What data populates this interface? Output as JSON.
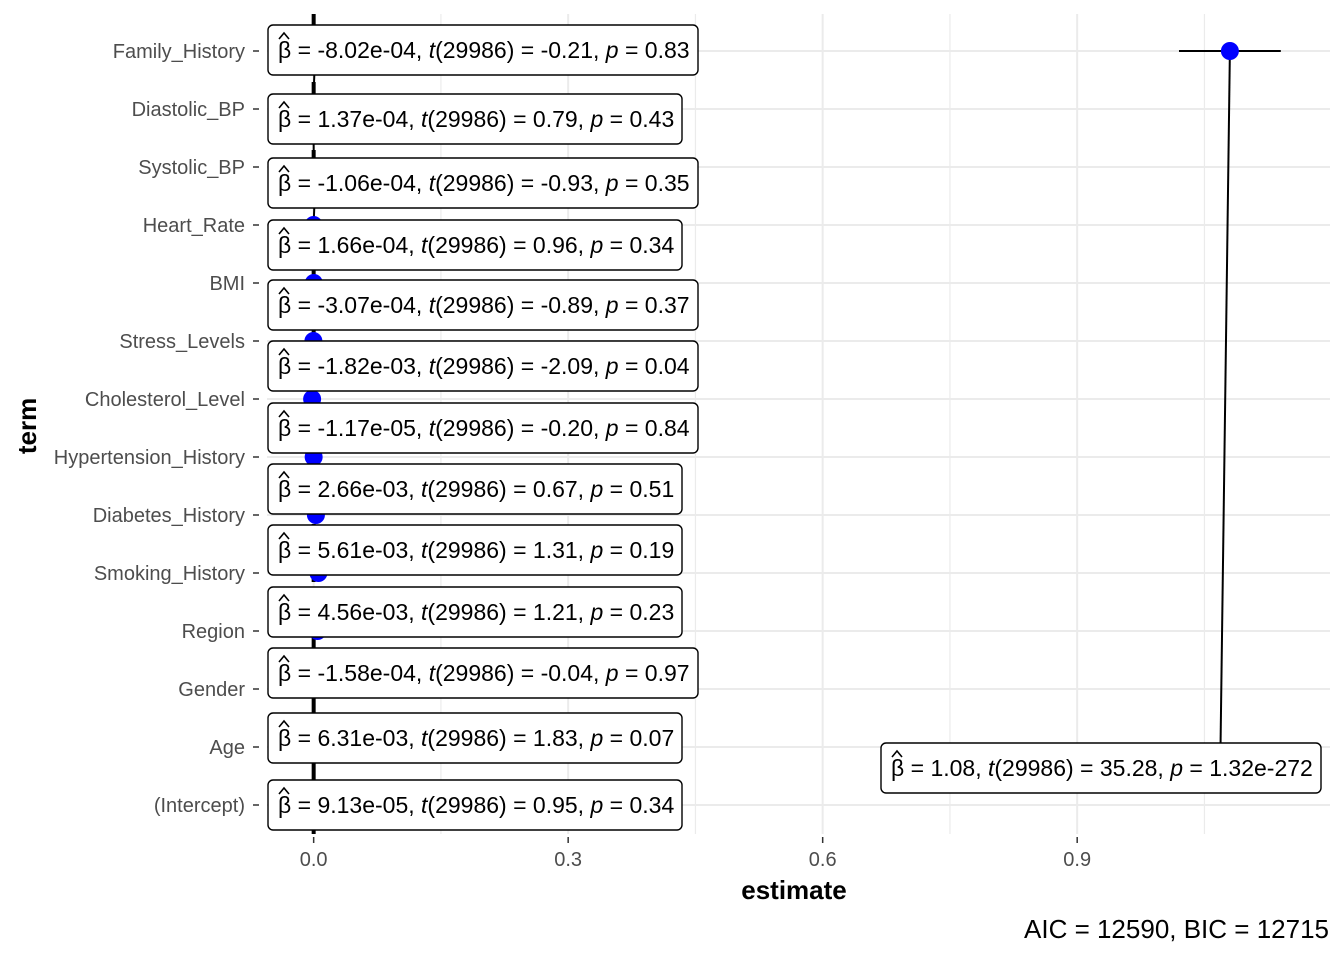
{
  "chart_data": {
    "type": "scatter",
    "title": "",
    "xlabel": "estimate",
    "ylabel": "term",
    "xlim": [
      -0.055,
      1.198
    ],
    "x_ticks": [
      0.0,
      0.3,
      0.6,
      0.9
    ],
    "x_tick_labels": [
      "0.0",
      "0.3",
      "0.6",
      "0.9"
    ],
    "grid": true,
    "reference_line_x": 0,
    "terms": [
      "(Intercept)",
      "Age",
      "Gender",
      "Region",
      "Smoking_History",
      "Diabetes_History",
      "Hypertension_History",
      "Cholesterol_Level",
      "Stress_Levels",
      "BMI",
      "Heart_Rate",
      "Systolic_BP",
      "Diastolic_BP",
      "Family_History"
    ],
    "points": [
      {
        "term": "(Intercept)",
        "estimate": 9.13e-05,
        "ci": [
          -9e-05,
          0.00027
        ],
        "label": {
          "beta": "9.13e-05",
          "t": "0.95",
          "p": "0.34"
        }
      },
      {
        "term": "Age",
        "estimate": 0.00631,
        "ci": [
          -0.0005,
          0.0131
        ],
        "label": {
          "beta": "6.31e-03",
          "t": "1.83",
          "p": "0.07"
        }
      },
      {
        "term": "Gender",
        "estimate": -0.000158,
        "ci": [
          -0.0071,
          0.0068
        ],
        "label": {
          "beta": "-1.58e-04",
          "t": "-0.04",
          "p": "0.97"
        }
      },
      {
        "term": "Region",
        "estimate": 0.00456,
        "ci": [
          -0.0028,
          0.0119
        ],
        "label": {
          "beta": "4.56e-03",
          "t": "1.21",
          "p": "0.23"
        }
      },
      {
        "term": "Smoking_History",
        "estimate": 0.00561,
        "ci": [
          -0.0028,
          0.014
        ],
        "label": {
          "beta": "5.61e-03",
          "t": "1.31",
          "p": "0.19"
        }
      },
      {
        "term": "Diabetes_History",
        "estimate": 0.00266,
        "ci": [
          -0.0051,
          0.0104
        ],
        "label": {
          "beta": "2.66e-03",
          "t": "0.67",
          "p": "0.51"
        }
      },
      {
        "term": "Hypertension_History",
        "estimate": -1.17e-05,
        "ci": [
          -0.00013,
          0.00011
        ],
        "label": {
          "beta": "-1.17e-05",
          "t": "-0.20",
          "p": "0.84"
        }
      },
      {
        "term": "Cholesterol_Level",
        "estimate": -0.00182,
        "ci": [
          -0.00353,
          -0.00011
        ],
        "label": {
          "beta": "-1.82e-03",
          "t": "-2.09",
          "p": "0.04"
        }
      },
      {
        "term": "Stress_Levels",
        "estimate": -0.000307,
        "ci": [
          -0.00098,
          0.00037
        ],
        "label": {
          "beta": "-3.07e-04",
          "t": "-0.89",
          "p": "0.37"
        }
      },
      {
        "term": "BMI",
        "estimate": 0.000166,
        "ci": [
          -0.00017,
          0.0005
        ],
        "label": {
          "beta": "1.66e-04",
          "t": "0.96",
          "p": "0.34"
        }
      },
      {
        "term": "Heart_Rate",
        "estimate": -0.000106,
        "ci": [
          -0.00033,
          0.00012
        ],
        "label": {
          "beta": "-1.06e-04",
          "t": "-0.93",
          "p": "0.35"
        }
      },
      {
        "term": "Systolic_BP",
        "estimate": 0.000137,
        "ci": [
          -0.0002,
          0.00048
        ],
        "label": {
          "beta": "1.37e-04",
          "t": "0.79",
          "p": "0.43"
        }
      },
      {
        "term": "Diastolic_BP",
        "estimate": -0.000802,
        "ci": [
          -0.0082,
          0.0066
        ],
        "label": {
          "beta": "-8.02e-04",
          "t": "-0.21",
          "p": "0.83"
        }
      },
      {
        "term": "Family_History",
        "estimate": 1.08,
        "ci": [
          1.02,
          1.14
        ],
        "label": {
          "beta": "1.08",
          "t": "35.28",
          "p": "1.32e-272"
        }
      }
    ],
    "df": "29986",
    "caption": {
      "aic": "12590",
      "bic": "12715"
    },
    "colors": {
      "point": "#0000ff",
      "grid": "#ebebeb",
      "text": "#4d4d4d",
      "label_border": "#000000"
    }
  }
}
